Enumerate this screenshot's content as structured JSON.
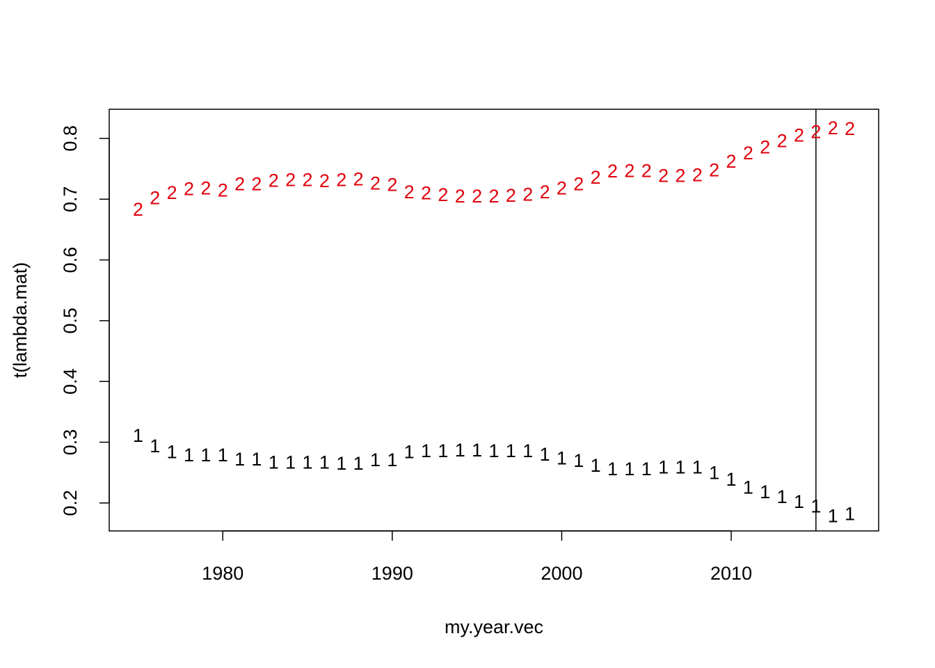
{
  "chart_data": {
    "type": "scatter",
    "title": "",
    "xlabel": "my.year.vec",
    "ylabel": "t(lambda.mat)",
    "xlim": [
      1973.3,
      2018.7
    ],
    "ylim": [
      0.154,
      0.848
    ],
    "x_ticks": [
      1980,
      1990,
      2000,
      2010
    ],
    "x_tick_labels": [
      "1980",
      "1990",
      "2000",
      "2010"
    ],
    "y_ticks": [
      0.2,
      0.3,
      0.4,
      0.5,
      0.6,
      0.7,
      0.8
    ],
    "y_tick_labels": [
      "0.2",
      "0.3",
      "0.4",
      "0.5",
      "0.6",
      "0.7",
      "0.8"
    ],
    "grid": false,
    "vline": 2015,
    "x": [
      1975,
      1976,
      1977,
      1978,
      1979,
      1980,
      1981,
      1982,
      1983,
      1984,
      1985,
      1986,
      1987,
      1988,
      1989,
      1990,
      1991,
      1992,
      1993,
      1994,
      1995,
      1996,
      1997,
      1998,
      1999,
      2000,
      2001,
      2002,
      2003,
      2004,
      2005,
      2006,
      2007,
      2008,
      2009,
      2010,
      2011,
      2012,
      2013,
      2014,
      2015,
      2016,
      2017
    ],
    "series": [
      {
        "marker": "1",
        "color": "#000000",
        "values": [
          0.312,
          0.295,
          0.285,
          0.28,
          0.28,
          0.28,
          0.273,
          0.273,
          0.268,
          0.268,
          0.268,
          0.268,
          0.266,
          0.266,
          0.272,
          0.272,
          0.285,
          0.287,
          0.287,
          0.288,
          0.288,
          0.287,
          0.287,
          0.287,
          0.281,
          0.275,
          0.271,
          0.263,
          0.257,
          0.257,
          0.257,
          0.26,
          0.26,
          0.26,
          0.251,
          0.24,
          0.227,
          0.219,
          0.211,
          0.203,
          0.196,
          0.18,
          0.183
        ]
      },
      {
        "marker": "2",
        "color": "#e0000b",
        "values": [
          0.684,
          0.703,
          0.712,
          0.718,
          0.719,
          0.716,
          0.726,
          0.726,
          0.732,
          0.733,
          0.733,
          0.731,
          0.733,
          0.734,
          0.727,
          0.725,
          0.713,
          0.711,
          0.708,
          0.706,
          0.706,
          0.706,
          0.707,
          0.709,
          0.713,
          0.719,
          0.726,
          0.737,
          0.747,
          0.748,
          0.748,
          0.74,
          0.74,
          0.741,
          0.749,
          0.763,
          0.777,
          0.787,
          0.797,
          0.806,
          0.812,
          0.818,
          0.817
        ]
      }
    ]
  }
}
